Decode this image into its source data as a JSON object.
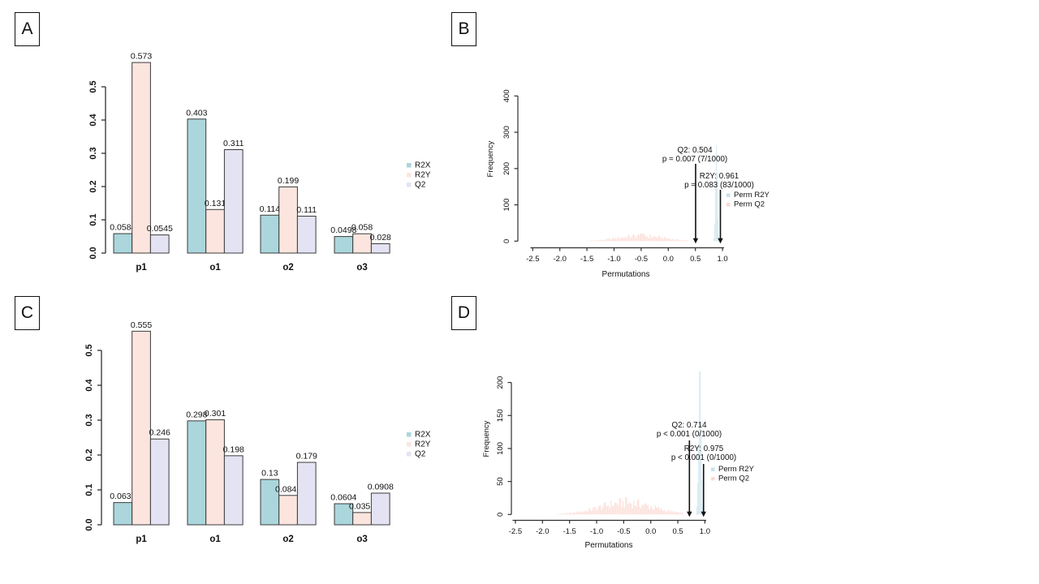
{
  "figure": {
    "background": "#ffffff",
    "axis_color": "#2f2f2f",
    "text_color": "#111111",
    "bar_border": "#3b3b3b"
  },
  "chart_data": [
    {
      "id": "A",
      "panel_label": "A",
      "type": "bar",
      "categories": [
        "p1",
        "o1",
        "o2",
        "o3"
      ],
      "series": [
        {
          "name": "R2X",
          "color": "#aad6dc",
          "values": [
            0.0584,
            0.403,
            0.114,
            0.0498
          ],
          "value_labels": [
            "0.0584",
            "0.403",
            "0.114",
            "0.0498"
          ]
        },
        {
          "name": "R2Y",
          "color": "#fbe5de",
          "values": [
            0.573,
            0.131,
            0.199,
            0.058
          ],
          "value_labels": [
            "0.573",
            "0.131",
            "0.199",
            "0.058"
          ]
        },
        {
          "name": "Q2",
          "color": "#e3e3f3",
          "values": [
            0.0545,
            0.311,
            0.111,
            0.028
          ],
          "value_labels": [
            "0.0545",
            "0.311",
            "0.111",
            "0.028"
          ]
        }
      ],
      "ylim": [
        0,
        0.5
      ],
      "yticks": [
        "0.0",
        "0.1",
        "0.2",
        "0.3",
        "0.4",
        "0.5"
      ],
      "legend_position": "right",
      "grid": false
    },
    {
      "id": "B",
      "panel_label": "B",
      "type": "histogram",
      "xlabel": "Permutations",
      "ylabel": "Frequency",
      "ylim": [
        0,
        400
      ],
      "yticks": [
        "0",
        "100",
        "200",
        "300",
        "400"
      ],
      "xlim": [
        -2.7,
        1.05
      ],
      "xticks": [
        "-2.5",
        "-2.0",
        "-1.5",
        "-1.0",
        "-0.5",
        "0.0",
        "0.5",
        "1.0"
      ],
      "series": [
        {
          "name": "Perm R2Y",
          "color": "#c6e1ee",
          "center": 0.886,
          "sd": 0.02,
          "peak": 265,
          "range": [
            0.83,
            0.95
          ],
          "bin": 0.016
        },
        {
          "name": "Perm Q2",
          "color": "#fbd9d2",
          "center": -0.5,
          "sd": 0.42,
          "peak": 21,
          "range": [
            -1.55,
            0.5
          ],
          "bin": 0.022
        }
      ],
      "annotations": [
        {
          "lines": [
            "Q2: 0.504",
            "p = 0.007 (7/1000)"
          ],
          "x": 0.504
        },
        {
          "lines": [
            "R2Y: 0.961",
            "p = 0.083 (83/1000)"
          ],
          "x": 0.961
        }
      ],
      "legend_position": "right",
      "grid": false
    },
    {
      "id": "C",
      "panel_label": "C",
      "type": "bar",
      "categories": [
        "p1",
        "o1",
        "o2",
        "o3"
      ],
      "series": [
        {
          "name": "R2X",
          "color": "#aad6dc",
          "values": [
            0.0637,
            0.298,
            0.13,
            0.0604
          ],
          "value_labels": [
            "0.0637",
            "0.298",
            "0.13",
            "0.0604"
          ]
        },
        {
          "name": "R2Y",
          "color": "#fbe5de",
          "values": [
            0.555,
            0.301,
            0.0842,
            0.0351
          ],
          "value_labels": [
            "0.555",
            "0.301",
            "0.0842",
            "0.0351"
          ]
        },
        {
          "name": "Q2",
          "color": "#e3e3f3",
          "values": [
            0.246,
            0.198,
            0.179,
            0.0908
          ],
          "value_labels": [
            "0.246",
            "0.198",
            "0.179",
            "0.0908"
          ]
        }
      ],
      "ylim": [
        0,
        0.5
      ],
      "yticks": [
        "0.0",
        "0.1",
        "0.2",
        "0.3",
        "0.4",
        "0.5"
      ],
      "legend_position": "right",
      "grid": false
    },
    {
      "id": "D",
      "panel_label": "D",
      "type": "histogram",
      "xlabel": "Permutations",
      "ylabel": "Frequency",
      "ylim": [
        0,
        200
      ],
      "yticks": [
        "0",
        "50",
        "100",
        "150",
        "200"
      ],
      "xlim": [
        -2.7,
        1.05
      ],
      "xticks": [
        "-2.5",
        "-2.0",
        "-1.5",
        "-1.0",
        "-0.5",
        "0.0",
        "0.5",
        "1.0"
      ],
      "series": [
        {
          "name": "Perm R2Y",
          "color": "#c6e1ee",
          "center": 0.91,
          "sd": 0.025,
          "peak": 228,
          "range": [
            0.83,
            0.99
          ],
          "bin": 0.016
        },
        {
          "name": "Perm Q2",
          "color": "#fbd9d2",
          "center": -0.45,
          "sd": 0.5,
          "peak": 26,
          "range": [
            -1.95,
            0.6
          ],
          "bin": 0.022
        }
      ],
      "annotations": [
        {
          "lines": [
            "Q2: 0.714",
            "p < 0.001 (0/1000)"
          ],
          "x": 0.714
        },
        {
          "lines": [
            "R2Y: 0.975",
            "p < 0.001 (0/1000)"
          ],
          "x": 0.975
        }
      ],
      "legend_position": "right",
      "grid": false
    }
  ]
}
